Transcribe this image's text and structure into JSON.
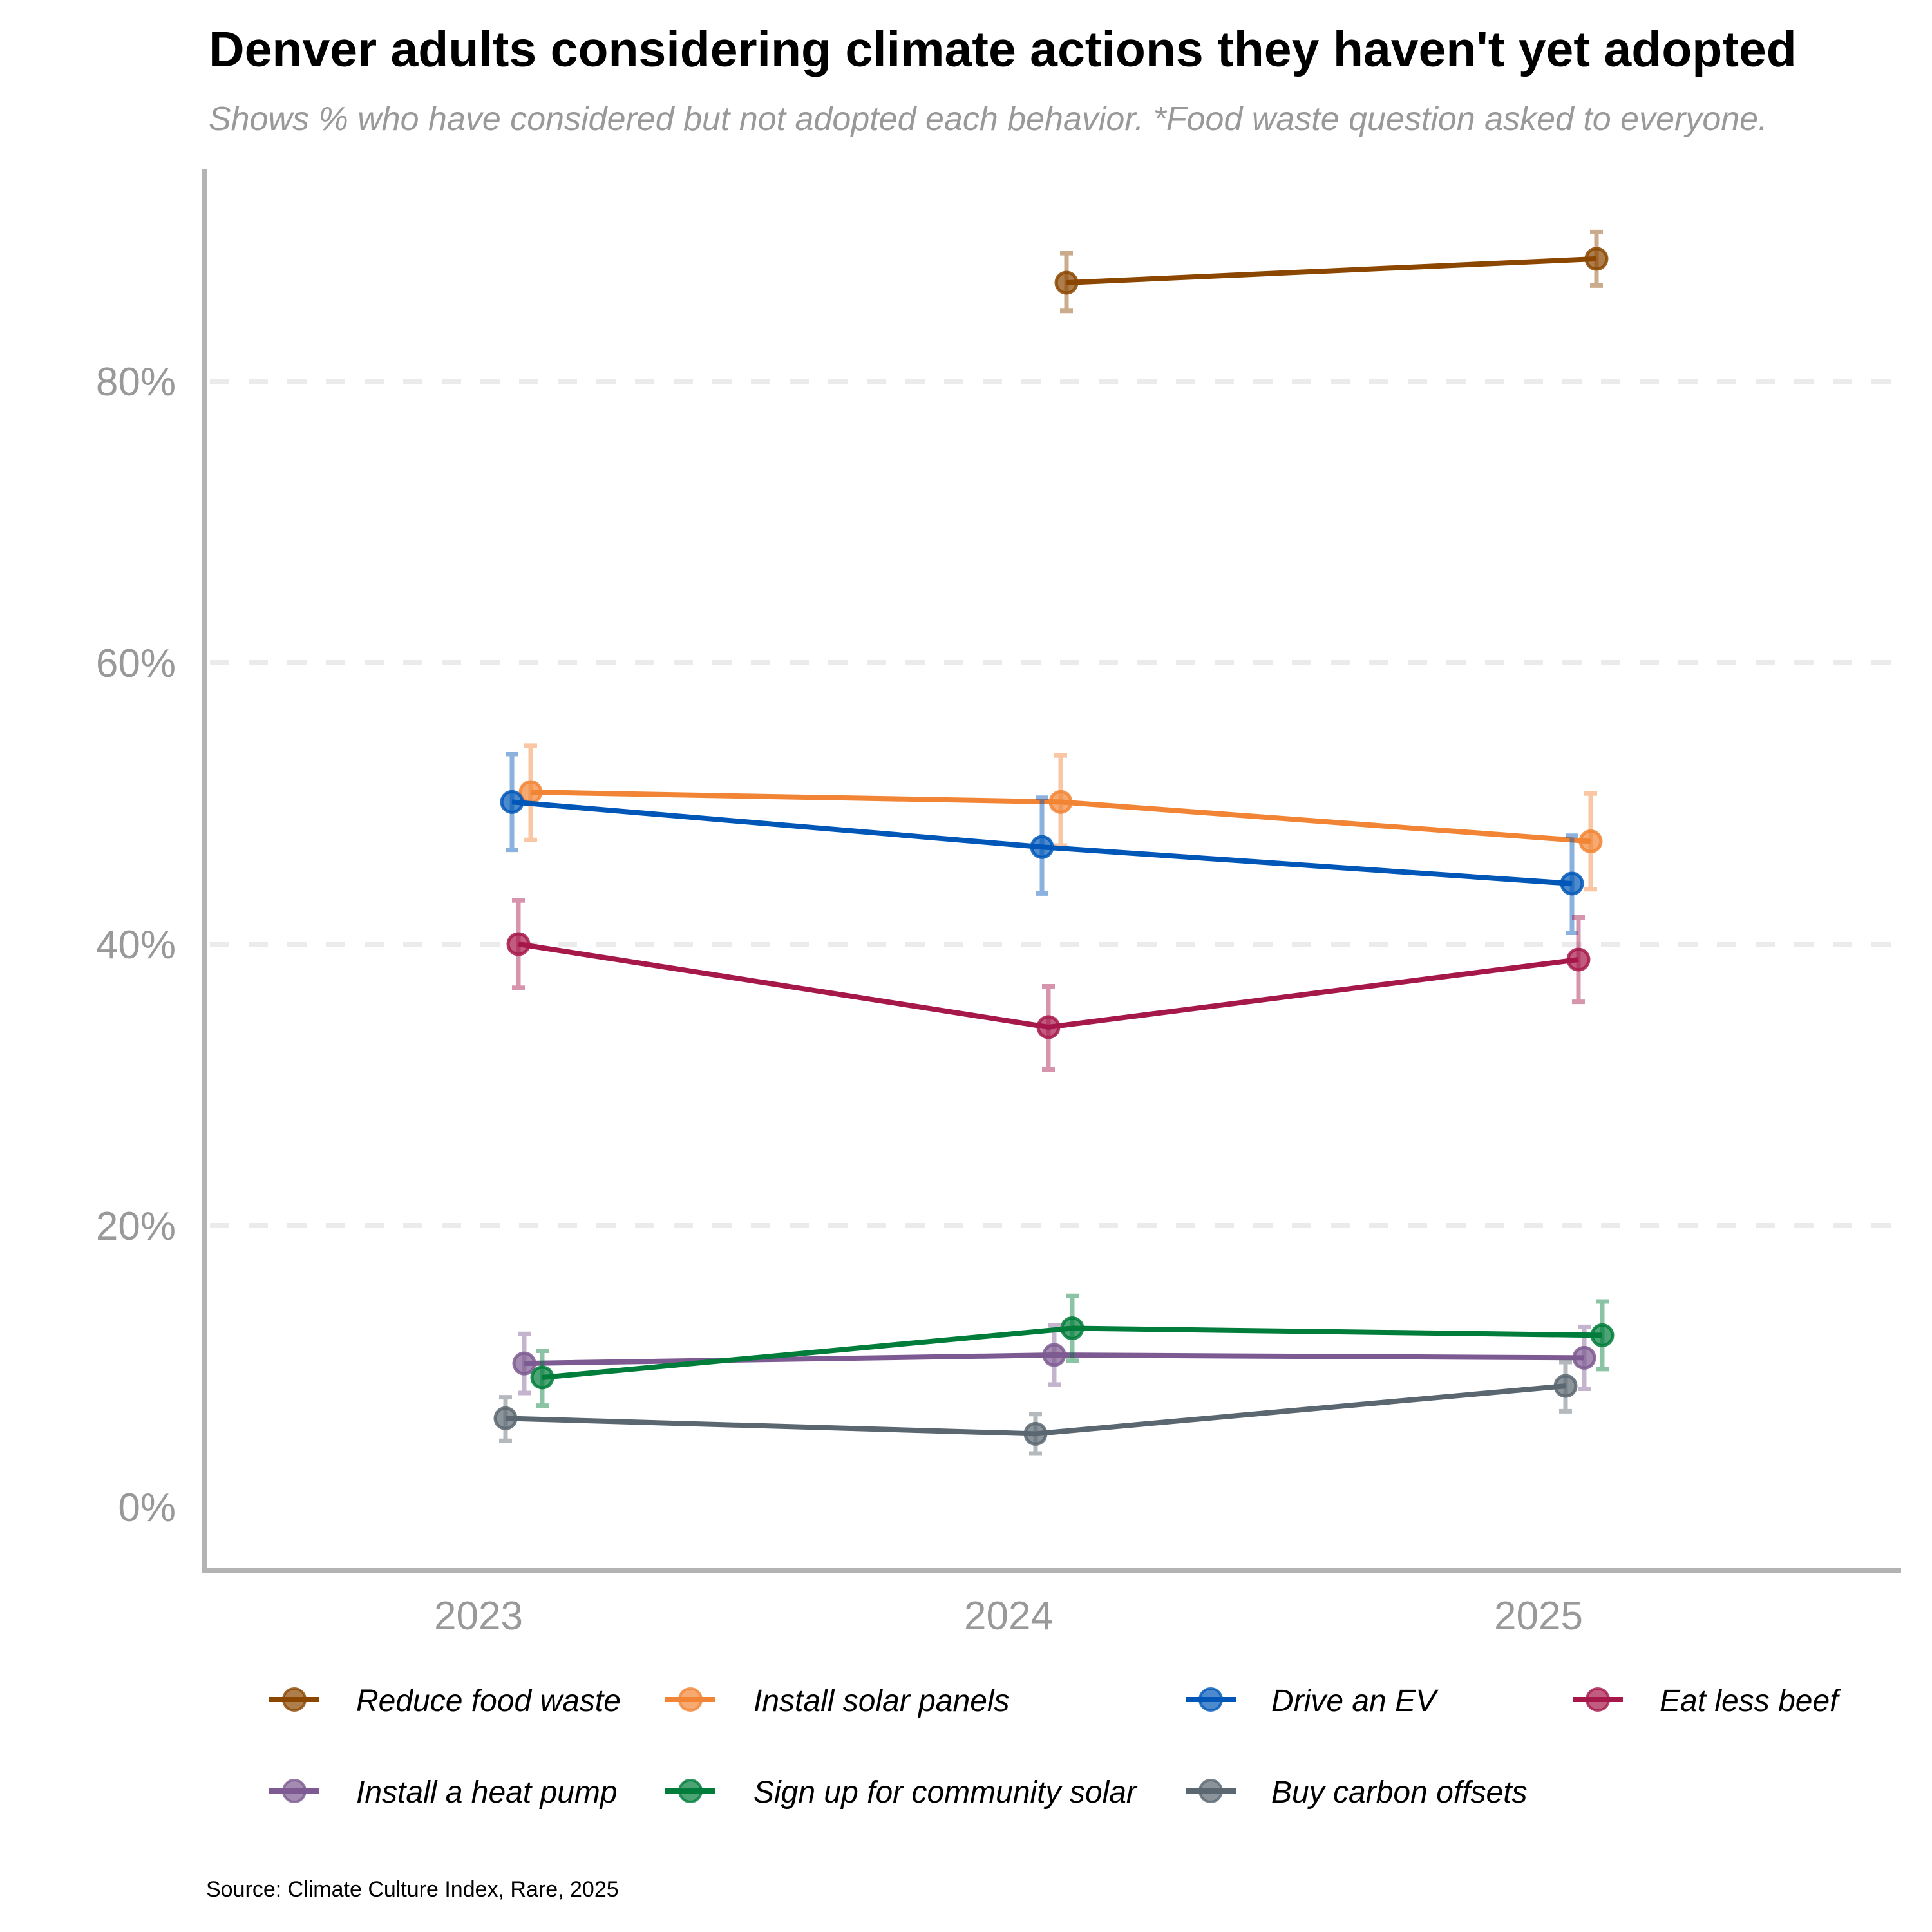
{
  "chart_data": {
    "type": "line",
    "title": "Denver adults considering climate actions they haven't yet adopted",
    "subtitle": "Shows % who have considered but not adopted each behavior. *Food waste question asked to everyone.",
    "source": "Source: Climate Culture Index, Rare, 2025",
    "xlabel": "",
    "ylabel": "",
    "x": [
      "2023",
      "2024",
      "2025"
    ],
    "ylim": [
      -4,
      94
    ],
    "yticks": [
      0,
      20,
      40,
      60,
      80
    ],
    "ytick_labels": [
      "0%",
      "20%",
      "40%",
      "60%",
      "80%"
    ],
    "grid": "horizontal dashed",
    "legend_position": "bottom",
    "error_bars": true,
    "series": [
      {
        "name": "Reduce food waste",
        "color": "#8B4600",
        "values": [
          null,
          87.0,
          88.7
        ],
        "ci_low": [
          null,
          85.0,
          86.8
        ],
        "ci_high": [
          null,
          89.1,
          90.6
        ]
      },
      {
        "name": "Install solar panels",
        "color": "#F28535",
        "values": [
          50.8,
          50.1,
          47.3
        ],
        "ci_low": [
          47.4,
          47.0,
          43.9
        ],
        "ci_high": [
          54.1,
          53.4,
          50.7
        ]
      },
      {
        "name": "Drive an EV",
        "color": "#0057B8",
        "values": [
          50.1,
          46.9,
          44.3
        ],
        "ci_low": [
          46.7,
          43.6,
          40.8
        ],
        "ci_high": [
          53.5,
          50.4,
          47.7
        ]
      },
      {
        "name": "Eat less beef",
        "color": "#A6174A",
        "values": [
          40.0,
          34.1,
          38.9
        ],
        "ci_low": [
          36.9,
          31.1,
          35.9
        ],
        "ci_high": [
          43.1,
          37.0,
          41.9
        ]
      },
      {
        "name": "Install a heat pump",
        "color": "#7D5A91",
        "values": [
          10.2,
          10.8,
          10.6
        ],
        "ci_low": [
          8.1,
          8.7,
          8.4
        ],
        "ci_high": [
          12.3,
          12.9,
          12.8
        ]
      },
      {
        "name": "Sign up for community solar",
        "color": "#007D3A",
        "values": [
          9.2,
          12.7,
          12.2
        ],
        "ci_low": [
          7.2,
          10.4,
          9.8
        ],
        "ci_high": [
          11.1,
          15.0,
          14.6
        ]
      },
      {
        "name": "Buy carbon offsets",
        "color": "#5A6670",
        "values": [
          6.3,
          5.2,
          8.6
        ],
        "ci_low": [
          4.7,
          3.8,
          6.8
        ],
        "ci_high": [
          7.8,
          6.6,
          10.3
        ]
      }
    ]
  }
}
